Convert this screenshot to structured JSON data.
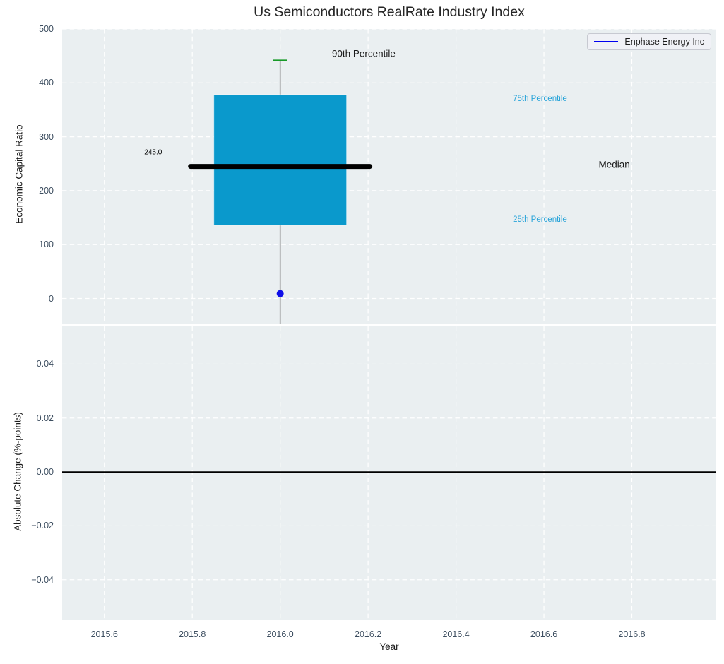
{
  "chart_data": {
    "type": "boxplot",
    "title": "Us Semiconductors RealRate Industry Index",
    "xlabel": "Year",
    "xlim": [
      2015.504,
      2016.992
    ],
    "xticks": {
      "values": [
        2015.6,
        2015.8,
        2016.0,
        2016.2,
        2016.4,
        2016.6,
        2016.8
      ],
      "labels": [
        "2015.6",
        "2015.8",
        "2016.0",
        "2016.2",
        "2016.4",
        "2016.6",
        "2016.8"
      ]
    },
    "legend": {
      "label": "Enphase Energy Inc"
    },
    "top_panel": {
      "ylabel": "Economic Capital Ratio",
      "ylim": [
        -46.5,
        500
      ],
      "grid": true,
      "yticks": {
        "values": [
          0,
          100,
          200,
          300,
          400,
          500
        ],
        "labels": [
          "0",
          "100",
          "200",
          "300",
          "400",
          "500"
        ]
      },
      "box": {
        "x": 2016.0,
        "q1": 136,
        "median": 245,
        "q3": 378,
        "p90": 441.5,
        "whisker_low": -46.5,
        "box_halfwidth": 0.151,
        "median_halfwidth": 0.204,
        "cap_halfwidth": 0.0165
      },
      "company_point": {
        "x": 2016.0,
        "y": 9,
        "series": "Enphase Energy Inc"
      },
      "annotations": [
        {
          "id": "median-value",
          "text": "245.0",
          "x": 2015.711,
          "y": 270,
          "color": "#000000",
          "size": 10
        },
        {
          "id": "p90-label",
          "text": "90th Percentile",
          "x": 2016.19,
          "y": 454,
          "color": "#1a1a1a",
          "size": 13.5
        },
        {
          "id": "p75-label",
          "text": "75th Percentile",
          "x": 2016.591,
          "y": 370,
          "color": "#29a4d9",
          "size": 11.5
        },
        {
          "id": "median-label",
          "text": "Median",
          "x": 2016.76,
          "y": 248,
          "color": "#1a1a1a",
          "size": 13.5
        },
        {
          "id": "p25-label",
          "text": "25th Percentile",
          "x": 2016.591,
          "y": 146,
          "color": "#29a4d9",
          "size": 11.5
        }
      ]
    },
    "bottom_panel": {
      "ylabel": "Absolute Change (%-points)",
      "ylim": [
        -0.055,
        0.054
      ],
      "grid": true,
      "yticks": {
        "values": [
          0.04,
          0.02,
          0.0,
          -0.02,
          -0.04
        ],
        "labels": [
          "0.04",
          "0.02",
          "0.00",
          "−0.02",
          "−0.04"
        ]
      },
      "zero_line_y": 0.0
    }
  },
  "colors": {
    "axes_bg": "#eaeff1",
    "grid": "#ffffff",
    "box_fill": "#0a99cc",
    "median_line": "#000000",
    "whisker": "#7a7a7a",
    "cap_green": "#189a28",
    "point_blue": "#0f0fe8",
    "legend_line_blue": "#0000f0",
    "tick_label": "#3d4e60",
    "zero_line": "#000000"
  }
}
